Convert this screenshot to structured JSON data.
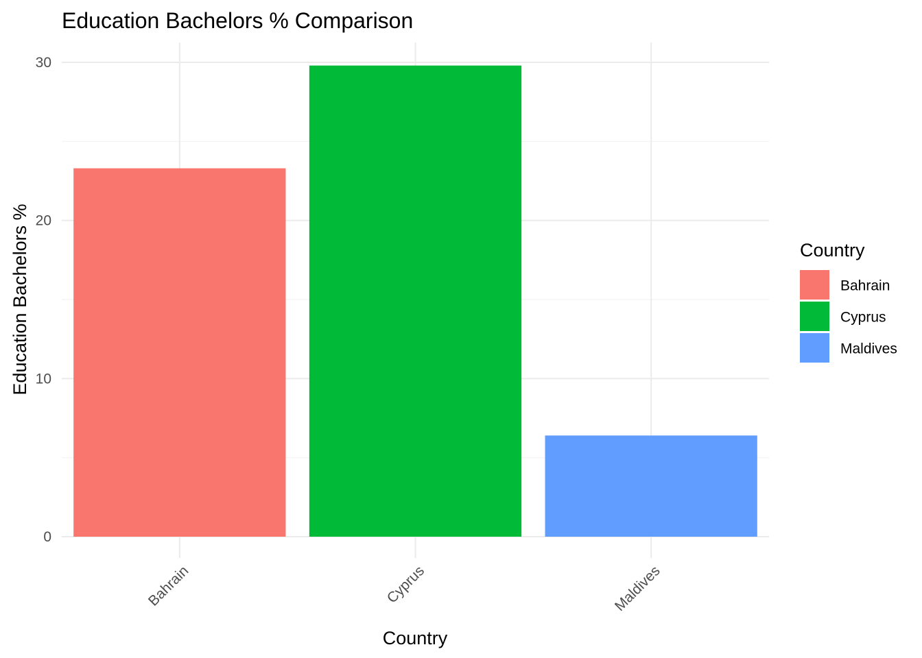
{
  "chart_data": {
    "type": "bar",
    "title": "Education Bachelors % Comparison",
    "xlabel": "Country",
    "ylabel": "Education Bachelors %",
    "categories": [
      "Bahrain",
      "Cyprus",
      "Maldives"
    ],
    "values": [
      23.3,
      29.8,
      6.4
    ],
    "colors": [
      "#F8766D",
      "#00BA38",
      "#619CFF"
    ],
    "ylim": [
      0,
      30
    ],
    "yticks": [
      0,
      10,
      20,
      30
    ],
    "grid": true,
    "legend": {
      "title": "Country",
      "position": "right",
      "entries": [
        "Bahrain",
        "Cyprus",
        "Maldives"
      ]
    }
  }
}
